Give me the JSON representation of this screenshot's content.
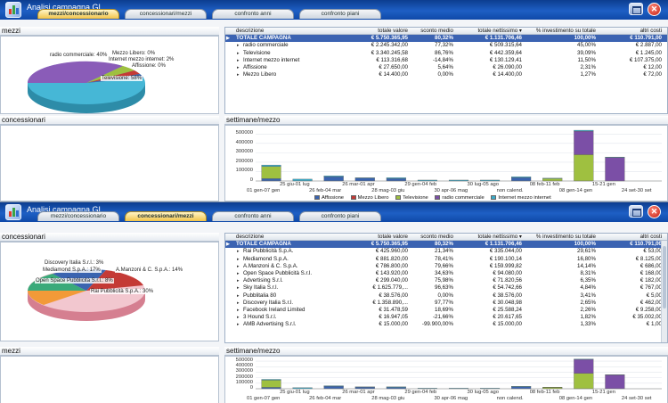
{
  "colors": {
    "titlebar": "#1a55b8",
    "total_row": "#3b63b2",
    "affissione": "#3a64b0",
    "mezzo_libero": "#c43a36",
    "televisione": "#9fc040",
    "radio_commerciale": "#7b4fa6",
    "internet": "#3aaac8"
  },
  "window1": {
    "title": "Analisi campagna GL",
    "tabs": [
      "mezzi/concessionario",
      "concessionari/mezzi",
      "confronto anni",
      "confronto piani"
    ],
    "active_tab": 0,
    "panel_mezzi": "mezzi",
    "panel_concessionari": "concessionari",
    "panel_chart": "settimane/mezzo",
    "pie_labels": [
      "radio commerciale: 40%",
      "Mezzo Libero: 0%",
      "Internet mezzo internet: 2%",
      "Affissione: 0%",
      "Televisione: 58%"
    ],
    "table": {
      "headers": [
        "descrizione",
        "totale valore",
        "sconto medio",
        "totale nettissimo ▾",
        "% investimento su totale",
        "altri costi"
      ],
      "rows": [
        [
          "TOTALE CAMPAGNA",
          "€ 5.750.365,95",
          "80,32%",
          "€ 1.131.706,46",
          "100,00%",
          "€ 110.791,00"
        ],
        [
          "radio commerciale",
          "€ 2.245.342,00",
          "77,32%",
          "€ 509.315,64",
          "45,00%",
          "€ 2.887,00"
        ],
        [
          "Televisione",
          "€ 3.340.245,58",
          "86,76%",
          "€ 442.359,64",
          "39,09%",
          "€ 1.245,00"
        ],
        [
          "Internet mezzo internet",
          "€ 113.316,68",
          "-14,84%",
          "€ 130.129,41",
          "11,50%",
          "€ 107.375,00"
        ],
        [
          "Affissione",
          "€ 27.650,00",
          "5,64%",
          "€ 26.090,00",
          "2,31%",
          "€ 12,00"
        ],
        [
          "Mezzo Libero",
          "€ 14.400,00",
          "0,00%",
          "€ 14.400,00",
          "1,27%",
          "€ 72,00"
        ]
      ]
    },
    "x_labels_top": [
      "25 giu-01 lug",
      "26 mar-01 apr",
      "29 gen-04 feb",
      "30 lug-05 ago",
      "08 feb-11 feb",
      "15-21 gen"
    ],
    "x_labels_bottom": [
      "01 gen-07 gen",
      "26 feb-04 mar",
      "28 mag-03 giu",
      "30 apr-06 mag",
      "non calend.",
      "08 gen-14 gen",
      "24 set-30 set"
    ],
    "y_labels": [
      "500000",
      "400000",
      "300000",
      "200000",
      "100000",
      "0"
    ],
    "legend": [
      "Affissione",
      "Mezzo Libero",
      "Televisione",
      "radio commerciale",
      "Internet mezzo internet"
    ]
  },
  "window2": {
    "title": "Analisi campagna GL",
    "tabs": [
      "mezzi/concessionario",
      "concessionari/mezzi",
      "confronto anni",
      "confronto piani"
    ],
    "active_tab": 1,
    "panel_concessionari": "concessionari",
    "panel_mezzi": "mezzi",
    "panel_chart": "settimane/mezzo",
    "pie_labels": [
      "Discovery Italia S.r.l.: 3%",
      "Mediamond S.p.A.: 17%",
      "A.Manzoni & C. S.p.A.: 14%",
      "Open Space Pubblicità S.r.l.: 8%",
      "Rai Pubblicità S.p.A.: 30%"
    ],
    "table": {
      "headers": [
        "descrizione",
        "totale valore",
        "sconto medio",
        "totale nettissimo ▾",
        "% investimento su totale",
        "altri costi"
      ],
      "rows": [
        [
          "TOTALE CAMPAGNA",
          "€ 5.750.365,95",
          "80,32%",
          "€ 1.131.706,46",
          "100,00%",
          "€ 110.791,00"
        ],
        [
          "Rai Pubblicità S.p.A.",
          "€ 425.960,00",
          "21,34%",
          "€ 335.044,00",
          "29,61%",
          "€ 53,00"
        ],
        [
          "Mediamond S.p.A.",
          "€ 881.820,00",
          "78,41%",
          "€ 190.100,14",
          "16,80%",
          "€ 8.125,00"
        ],
        [
          "A.Manzoni & C. S.p.A.",
          "€ 786.800,00",
          "79,66%",
          "€ 159.999,82",
          "14,14%",
          "€ 686,00"
        ],
        [
          "Open Space Pubblicità S.r.l.",
          "€ 143.920,00",
          "34,63%",
          "€ 94.080,00",
          "8,31%",
          "€ 168,00"
        ],
        [
          "Advertising S.r.l.",
          "€ 299.040,00",
          "75,98%",
          "€ 71.820,56",
          "6,35%",
          "€ 182,00"
        ],
        [
          "Sky Italia S.r.l.",
          "€ 1.625.779,...",
          "96,63%",
          "€ 54.742,66",
          "4,84%",
          "€ 767,00"
        ],
        [
          "Pubblitalia 80",
          "€ 38.576,00",
          "0,00%",
          "€ 38.576,00",
          "3,41%",
          "€ 5,00"
        ],
        [
          "Discovery Italia S.r.l.",
          "€ 1.358.890,...",
          "97,77%",
          "€ 30.048,98",
          "2,65%",
          "€ 462,00"
        ],
        [
          "Facebook Ireland Limited",
          "€ 31.478,59",
          "18,69%",
          "€ 25.588,24",
          "2,26%",
          "€ 9.258,00"
        ],
        [
          "3 Hound S.r.l.",
          "€ 16.947,05",
          "-21,66%",
          "€ 20.617,65",
          "1,82%",
          "€ 35.002,00"
        ],
        [
          "AMB Advertising S.r.l.",
          "€ 15.000,00",
          "-99.900,00%",
          "€ 15.000,00",
          "1,33%",
          "€ 1,00"
        ]
      ]
    },
    "x_labels_top": [
      "25 giu-01 lug",
      "26 mar-01 apr",
      "29 gen-04 feb",
      "30 lug-05 ago",
      "08 feb-11 feb",
      "15-21 gen"
    ],
    "x_labels_bottom": [
      "01 gen-07 gen",
      "26 feb-04 mar",
      "28 mag-03 giu",
      "30 apr-06 mag",
      "non calend.",
      "08 gen-14 gen",
      "24 set-30 set"
    ],
    "y_labels": [
      "500000",
      "400000",
      "300000",
      "200000",
      "100000",
      "0"
    ],
    "legend": [
      "Affissione",
      "Mezzo Libero",
      "Televisione",
      "radio commerciale",
      "Internet mezzo internet"
    ]
  },
  "chart_data": [
    {
      "type": "bar",
      "xlabel": "",
      "ylabel": "",
      "ylim": [
        0,
        550000
      ],
      "categories": [
        "01 gen-07 gen",
        "25 giu-01 lug",
        "26 feb-04 mar",
        "26 mar-01 apr",
        "28 mag-03 giu",
        "29 gen-04 feb",
        "30 apr-06 mag",
        "30 lug-05 ago",
        "non calend.",
        "08 feb-11 feb",
        "08 gen-14 gen",
        "15-21 gen",
        "24 set-30 set"
      ],
      "series": [
        {
          "name": "Affissione",
          "values": [
            25000,
            0,
            45000,
            30000,
            25000,
            0,
            0,
            0,
            35000,
            0,
            0,
            0,
            0
          ]
        },
        {
          "name": "Mezzo Libero",
          "values": [
            0,
            0,
            0,
            0,
            0,
            0,
            0,
            0,
            0,
            0,
            0,
            0,
            0
          ]
        },
        {
          "name": "Televisione",
          "values": [
            130000,
            0,
            0,
            0,
            0,
            0,
            0,
            0,
            0,
            25000,
            280000,
            0,
            0
          ]
        },
        {
          "name": "radio commerciale",
          "values": [
            0,
            0,
            0,
            0,
            0,
            0,
            0,
            0,
            0,
            0,
            250000,
            250000,
            0
          ]
        },
        {
          "name": "Internet mezzo internet",
          "values": [
            15000,
            20000,
            10000,
            5000,
            10000,
            10000,
            10000,
            10000,
            10000,
            5000,
            10000,
            5000,
            0
          ]
        }
      ]
    }
  ]
}
